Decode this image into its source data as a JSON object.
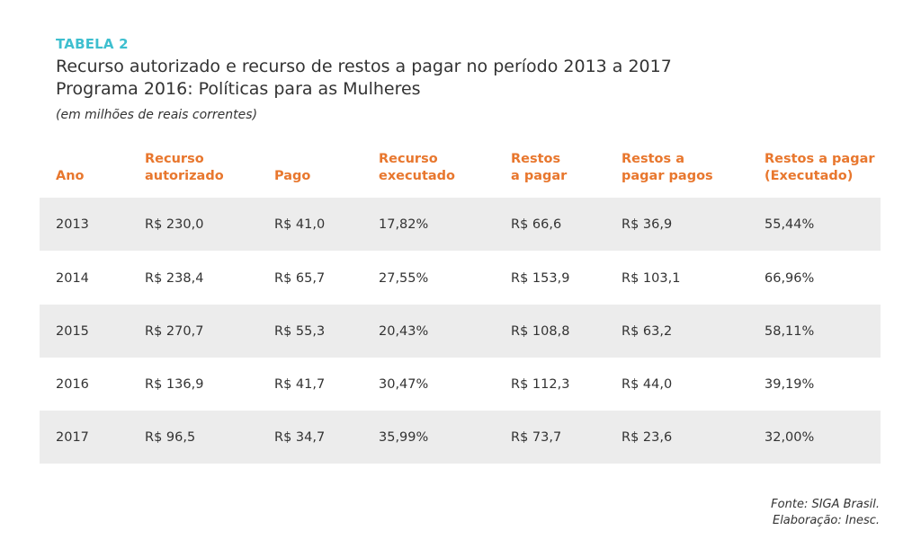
{
  "header": {
    "label": "TABELA 2",
    "title_line1": "Recurso autorizado e recurso de restos a pagar no período 2013 a 2017",
    "title_line2": "Programa 2016: Políticas para as Mulheres",
    "unit": "(em milhões de reais correntes)"
  },
  "colors": {
    "label": "#3ebfcf",
    "column_header": "#e8772e",
    "row_shade": "#ececec"
  },
  "table": {
    "columns": [
      [
        "Ano"
      ],
      [
        "Recurso",
        "autorizado"
      ],
      [
        "Pago"
      ],
      [
        "Recurso",
        "executado"
      ],
      [
        "Restos",
        "a pagar"
      ],
      [
        "Restos a",
        "pagar pagos"
      ],
      [
        "Restos a pagar",
        "(Executado)"
      ]
    ],
    "rows": [
      [
        "2013",
        "R$ 230,0",
        "R$ 41,0",
        "17,82%",
        "R$ 66,6",
        "R$ 36,9",
        "55,44%"
      ],
      [
        "2014",
        "R$ 238,4",
        "R$ 65,7",
        "27,55%",
        "R$ 153,9",
        "R$ 103,1",
        "66,96%"
      ],
      [
        "2015",
        "R$ 270,7",
        "R$ 55,3",
        "20,43%",
        "R$ 108,8",
        "R$ 63,2",
        "58,11%"
      ],
      [
        "2016",
        "R$ 136,9",
        "R$ 41,7",
        "30,47%",
        "R$ 112,3",
        "R$ 44,0",
        "39,19%"
      ],
      [
        "2017",
        "R$ 96,5",
        "R$ 34,7",
        "35,99%",
        "R$ 73,7",
        "R$ 23,6",
        "32,00%"
      ]
    ]
  },
  "footer": {
    "source": "Fonte: SIGA Brasil.",
    "credit": "Elaboração: Inesc."
  }
}
